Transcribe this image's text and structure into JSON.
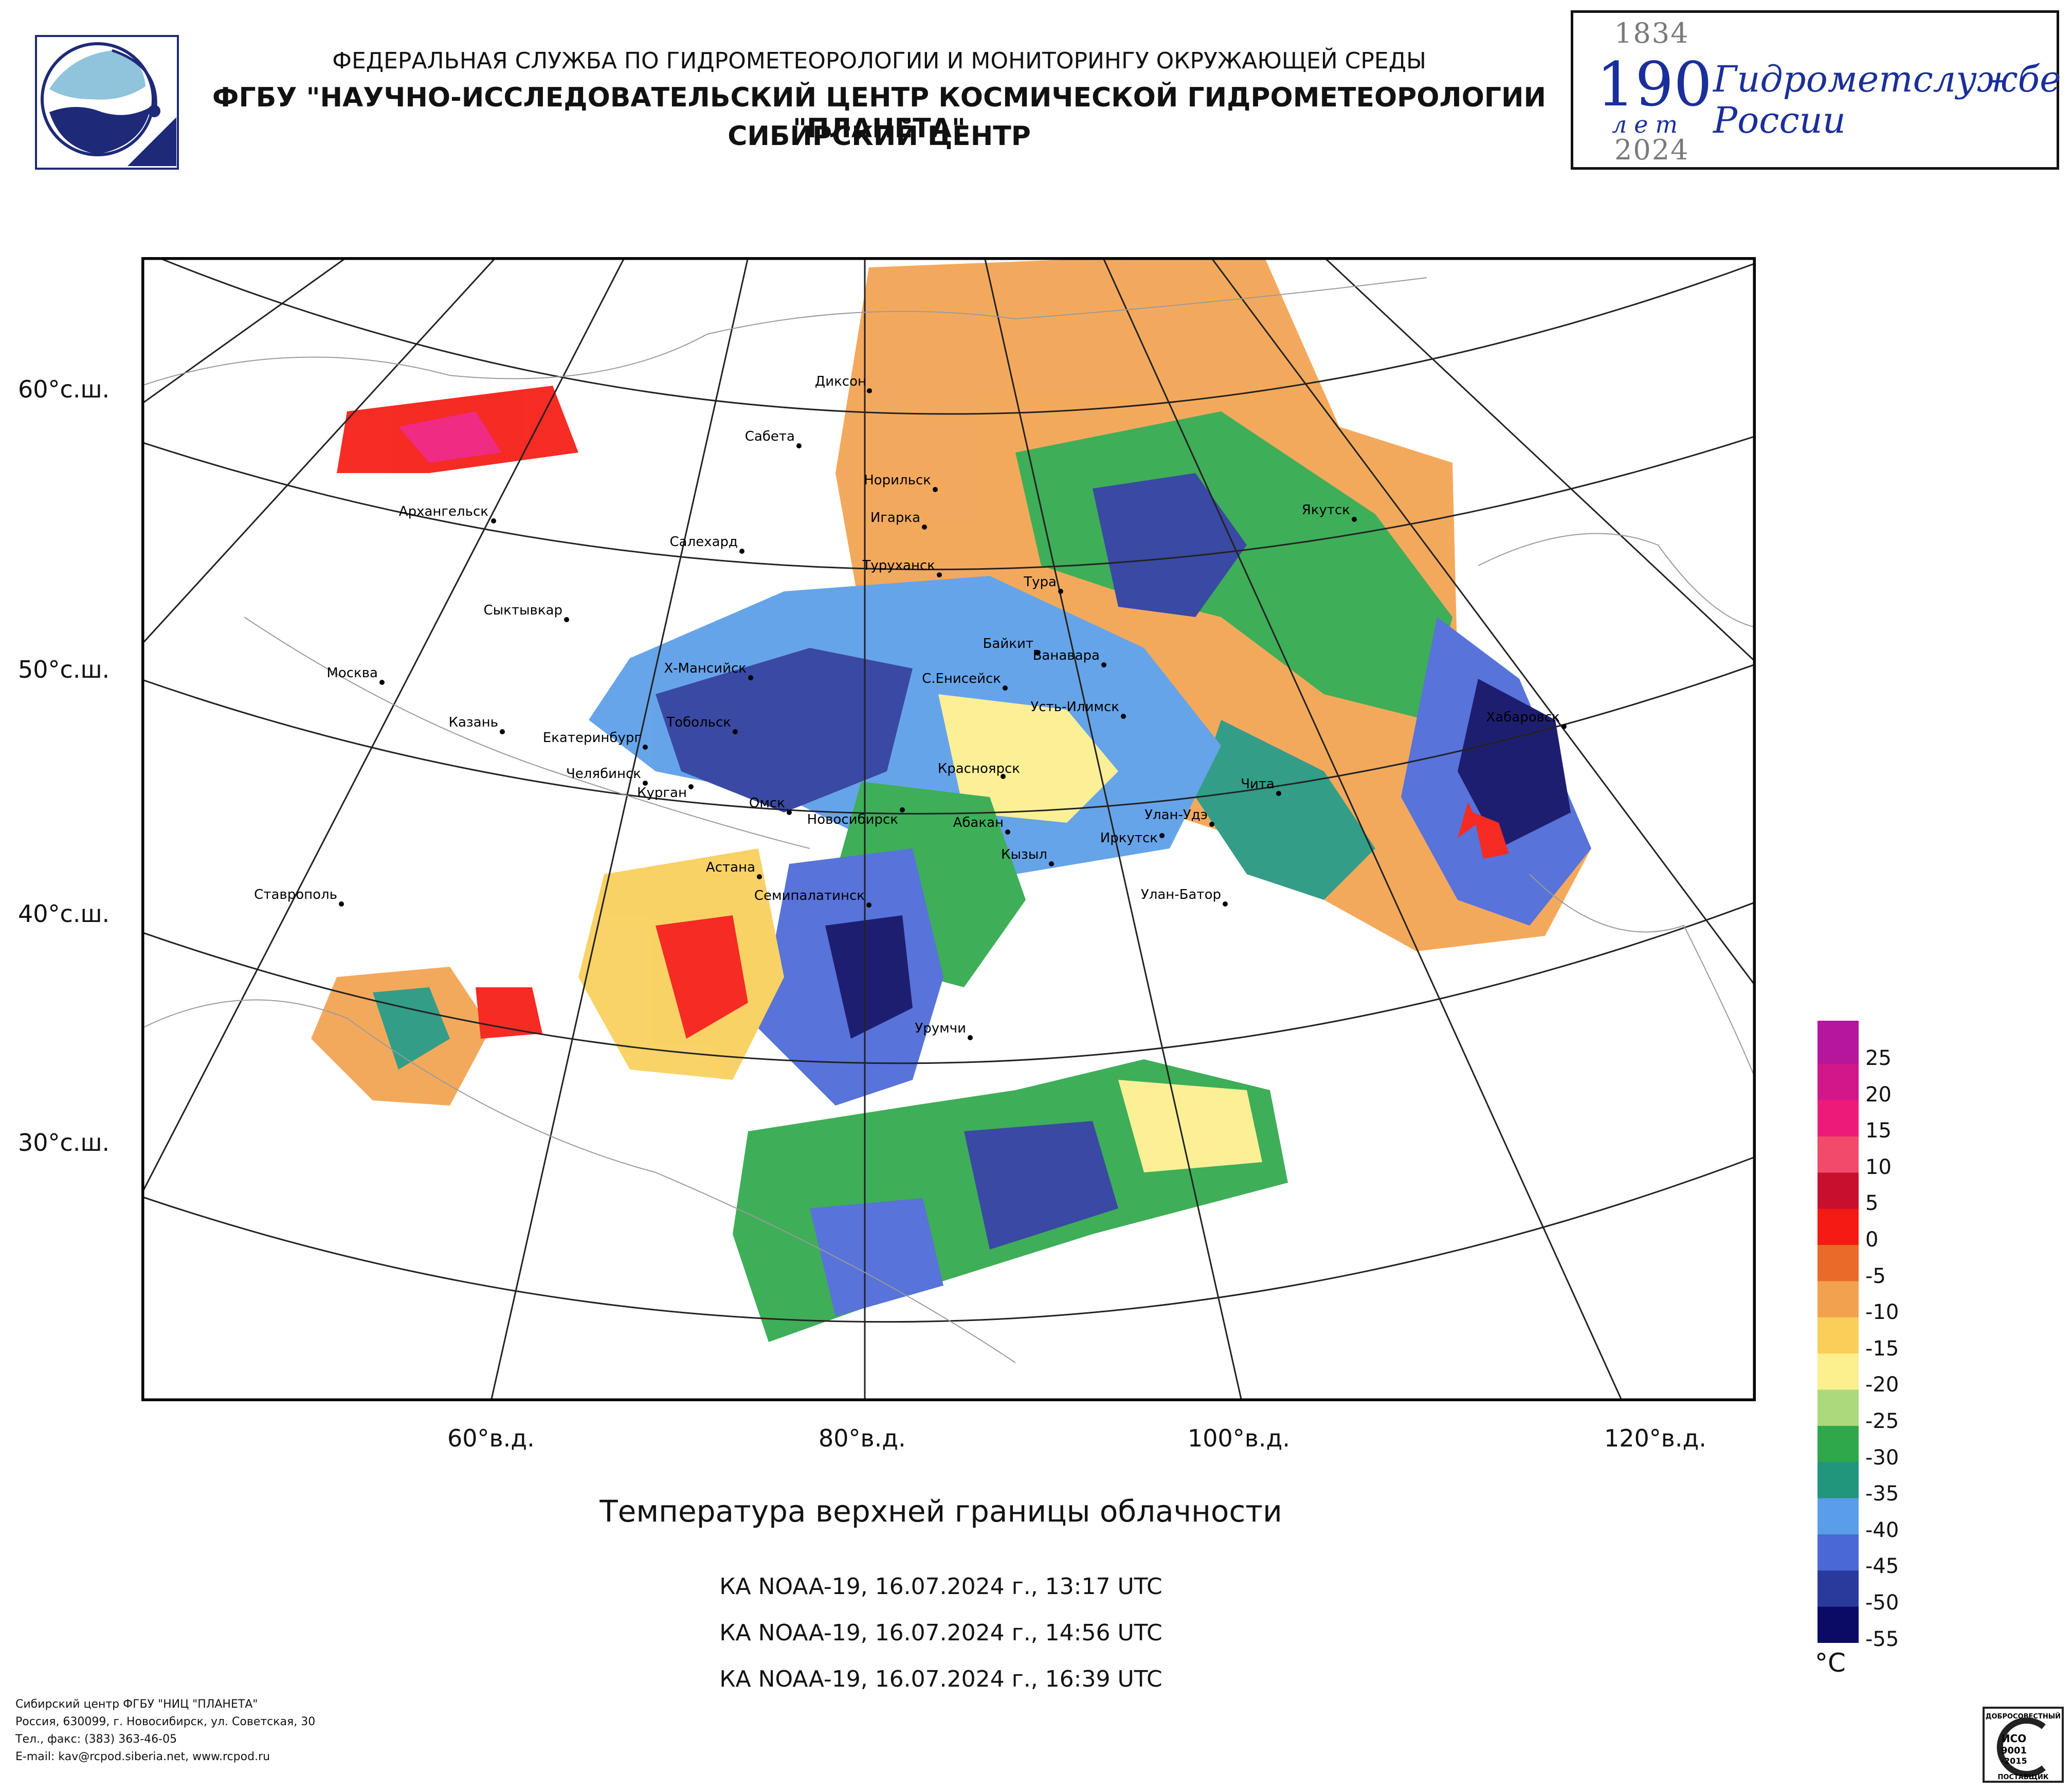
{
  "header": {
    "line1": "ФЕДЕРАЛЬНАЯ СЛУЖБА ПО ГИДРОМЕТЕОРОЛОГИИ И МОНИТОРИНГУ ОКРУЖАЮЩЕЙ СРЕДЫ",
    "line2": "ФГБУ \"НАУЧНО-ИССЛЕДОВАТЕЛЬСКИЙ ЦЕНТР КОСМИЧЕСКОЙ ГИДРОМЕТЕОРОЛОГИИ \"ПЛАНЕТА\"",
    "line3": "СИБИРСКИЙ ЦЕНТР",
    "logo_icon": "planeta-logo-icon"
  },
  "anniversary": {
    "year_start": "1834",
    "number": "190",
    "years_word": "лет",
    "year_end": "2024",
    "text_line1": "Гидрометслужбе",
    "text_line2": "России",
    "color": "#1b2f9a"
  },
  "map": {
    "lat_labels": [
      "60°с.ш.",
      "50°с.ш.",
      "40°с.ш.",
      "30°с.ш."
    ],
    "lon_labels": [
      "60°в.д.",
      "80°в.д.",
      "100°в.д.",
      "120°в.д."
    ],
    "cities": [
      {
        "name": "Диксон"
      },
      {
        "name": "Сабета"
      },
      {
        "name": "Норильск"
      },
      {
        "name": "Игарка"
      },
      {
        "name": "Архангельск"
      },
      {
        "name": "Салехард"
      },
      {
        "name": "Туруханск"
      },
      {
        "name": "Тура"
      },
      {
        "name": "Якутск"
      },
      {
        "name": "Сыктывкар"
      },
      {
        "name": "Байкит"
      },
      {
        "name": "Ванавара"
      },
      {
        "name": "Москва"
      },
      {
        "name": "Х-Мансийск"
      },
      {
        "name": "С.Енисейск"
      },
      {
        "name": "Усть-Илимск"
      },
      {
        "name": "Хабаровск"
      },
      {
        "name": "Казань"
      },
      {
        "name": "Тобольск"
      },
      {
        "name": "Екатеринбург"
      },
      {
        "name": "Челябинск"
      },
      {
        "name": "Красноярск"
      },
      {
        "name": "Курган"
      },
      {
        "name": "Чита"
      },
      {
        "name": "Омск"
      },
      {
        "name": "Новосибирск"
      },
      {
        "name": "Абакан"
      },
      {
        "name": "Улан-Удэ"
      },
      {
        "name": "Иркутск"
      },
      {
        "name": "Кызыл"
      },
      {
        "name": "Астана"
      },
      {
        "name": "Ставрополь"
      },
      {
        "name": "Семипалатинск"
      },
      {
        "name": "Улан-Батор"
      },
      {
        "name": "Урумчи"
      }
    ]
  },
  "title": "Температура верхней границы облачности",
  "passes": [
    "КА NOAA-19, 16.07.2024 г., 13:17 UTC",
    "КА NOAA-19, 16.07.2024 г., 14:56 UTC",
    "КА NOAA-19, 16.07.2024 г., 16:39 UTC"
  ],
  "legend": {
    "unit": "°C",
    "labels": [
      "25",
      "20",
      "15",
      "10",
      "5",
      "0",
      "-5",
      "-10",
      "-15",
      "-20",
      "-25",
      "-30",
      "-35",
      "-40",
      "-45",
      "-50",
      "-55"
    ],
    "colors": [
      "#b5169c",
      "#d1178a",
      "#ee1a7a",
      "#f24a6a",
      "#c8102e",
      "#f51a12",
      "#ea6a2a",
      "#f2a24f",
      "#f9cf5a",
      "#fbef8e",
      "#abd97c",
      "#2ea84a",
      "#22957d",
      "#5a9de8",
      "#4a68d6",
      "#2a3a9c",
      "#0b0b66"
    ]
  },
  "footer": {
    "line1": "Сибирский центр ФГБУ \"НИЦ \"ПЛАНЕТА\"",
    "line2": "Россия, 630099, г. Новосибирск, ул. Советская, 30",
    "line3": "Тел., факс: (383) 363-46-05",
    "line4": "E-mail: kav@rcpod.siberia.net, www.rcpod.ru",
    "cert_top": "ДОБРОСОВЕСТНЫЙ",
    "cert_iso": "ИСО",
    "cert_num": "9001",
    "cert_year": "-2015",
    "cert_bottom": "ПОСТАВЩИК"
  }
}
